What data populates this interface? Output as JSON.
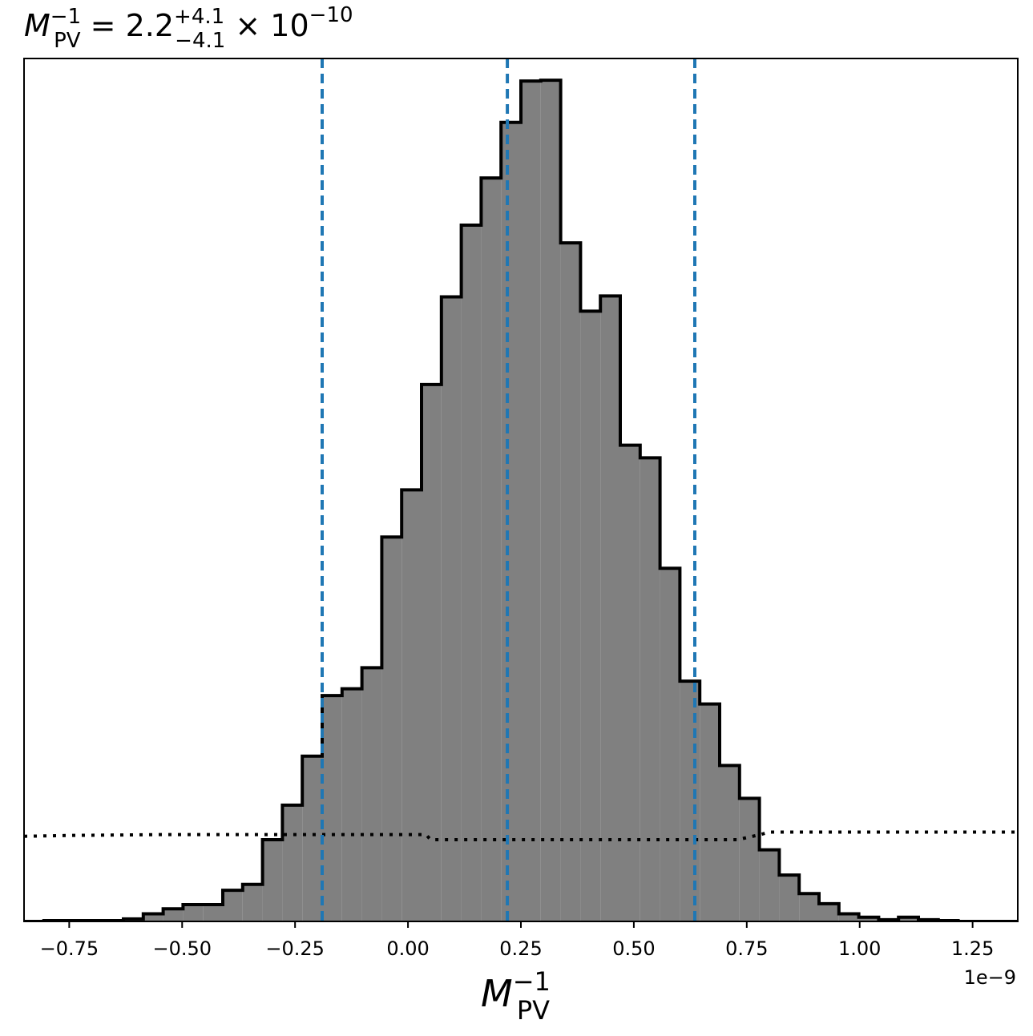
{
  "chart_data": {
    "type": "histogram",
    "title": {
      "symbol": "M",
      "symbol_sub": "PV",
      "symbol_sup": "−1",
      "equals": " = 2.2",
      "upper_err": "+4.1",
      "lower_err": "−4.1",
      "times": " × 10",
      "exponent": "−10"
    },
    "xlabel": {
      "symbol": "M",
      "sub": "PV",
      "sup": "−1"
    },
    "x_offset_label": "1e−9",
    "x_scale": 1e-09,
    "xlim": [
      -0.85,
      1.35
    ],
    "ylim": [
      0,
      1.0
    ],
    "x_ticks": [
      -0.75,
      -0.5,
      -0.25,
      0.0,
      0.25,
      0.5,
      0.75,
      1.0,
      1.25
    ],
    "x_tick_labels": [
      "−0.75",
      "−0.50",
      "−0.25",
      "0.00",
      "0.25",
      "0.50",
      "0.75",
      "1.00",
      "1.25"
    ],
    "histogram": {
      "bin_edges": [
        -0.85,
        -0.806,
        -0.762,
        -0.718,
        -0.674,
        -0.63,
        -0.586,
        -0.542,
        -0.498,
        -0.454,
        -0.41,
        -0.366,
        -0.322,
        -0.278,
        -0.234,
        -0.19,
        -0.146,
        -0.102,
        -0.058,
        -0.014,
        0.03,
        0.074,
        0.118,
        0.162,
        0.206,
        0.25,
        0.294,
        0.338,
        0.382,
        0.426,
        0.47,
        0.514,
        0.558,
        0.602,
        0.646,
        0.69,
        0.734,
        0.778,
        0.822,
        0.866,
        0.91,
        0.954,
        0.998,
        1.042,
        1.086,
        1.13,
        1.174,
        1.218,
        1.262,
        1.306,
        1.35
      ],
      "counts": [
        0.0,
        0.001,
        0.001,
        0.001,
        0.001,
        0.003,
        0.009,
        0.015,
        0.02,
        0.02,
        0.037,
        0.044,
        0.097,
        0.138,
        0.196,
        0.268,
        0.276,
        0.301,
        0.456,
        0.512,
        0.637,
        0.741,
        0.826,
        0.882,
        0.948,
        0.997,
        0.998,
        0.805,
        0.724,
        0.742,
        0.565,
        0.55,
        0.419,
        0.285,
        0.258,
        0.185,
        0.146,
        0.085,
        0.055,
        0.033,
        0.021,
        0.009,
        0.005,
        0.002,
        0.005,
        0.002,
        0.001,
        0.0,
        0.0,
        0.0
      ],
      "fill_color": "#808080",
      "edge_color": "#000000"
    },
    "quantile_lines": {
      "x": [
        -0.19,
        0.22,
        0.635
      ],
      "color": "#1f77b4",
      "style": "dashed"
    },
    "prior_line": {
      "x": [
        -0.85,
        -0.75,
        -0.55,
        -0.35,
        -0.15,
        0.04,
        0.05,
        0.25,
        0.45,
        0.65,
        0.73,
        0.78,
        0.8,
        1.0,
        1.2,
        1.35
      ],
      "y": [
        0.101,
        0.102,
        0.103,
        0.103,
        0.103,
        0.103,
        0.097,
        0.097,
        0.097,
        0.097,
        0.097,
        0.103,
        0.106,
        0.106,
        0.106,
        0.106
      ],
      "color": "#000000",
      "style": "dotted"
    }
  }
}
